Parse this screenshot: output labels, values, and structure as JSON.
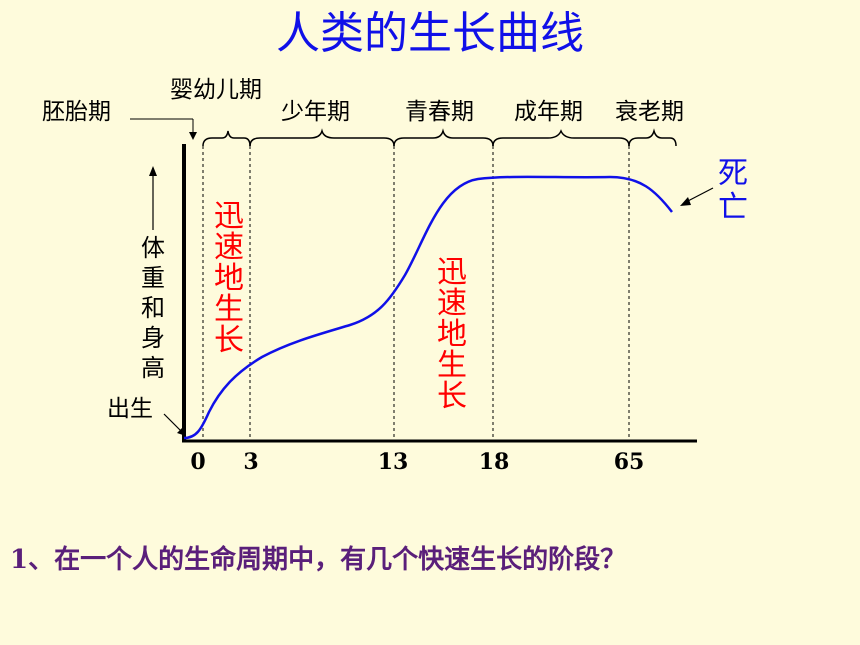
{
  "title": "人类的生长曲线",
  "stages": {
    "embryo": "胚胎期",
    "infant": "婴幼儿期",
    "child": "少年期",
    "youth": "青春期",
    "adult": "成年期",
    "elder": "衰老期"
  },
  "ylabel": "体重和身高",
  "birth_label": "出生",
  "death_label": "死亡",
  "rapid_label": "迅速地生长",
  "ticks": [
    "0",
    "3",
    "13",
    "18",
    "65"
  ],
  "question": "1、在一个人的生命周期中，有几个快速生长的阶段？",
  "colors": {
    "background": "#fefbdc",
    "title": "#1010e8",
    "curve": "#1010e8",
    "rapid_text": "#ff0000",
    "question": "#5a1f7a"
  }
}
